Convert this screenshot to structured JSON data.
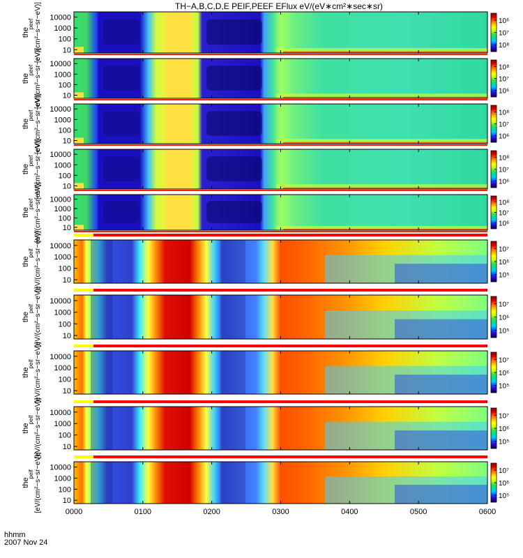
{
  "title": "TH−A,B,C,D,E PEIF,PEEF EFlux eV/(eV∗cm²∗sec∗sr)",
  "footer": {
    "time_unit": "hhmm",
    "date": "2007 Nov 24",
    "left_overlap": "[eV/(cm²−s"
  },
  "chart_data": [
    {
      "type": "heatmap",
      "panel": "peef_a",
      "ylabel_main": "the",
      "ylabel_sub": "peef",
      "ylabel_units": "[eV/(cm²−s−sr−eV)]",
      "y_ticks": [
        "10000",
        "1000",
        "100",
        "10"
      ],
      "x_ticks": [
        "0000",
        "0100",
        "0200",
        "0300",
        "0400",
        "0500",
        "0600"
      ],
      "colorbar_ticks": [
        "10⁶",
        "10⁷",
        "10⁸"
      ],
      "colorbar": "rainbow",
      "yscale": "log",
      "xlim": [
        "0000",
        "0600"
      ],
      "ylim": [
        5,
        30000
      ],
      "flag_bar": false
    },
    {
      "type": "heatmap",
      "panel": "peef_b",
      "ylabel_main": "the",
      "ylabel_sub": "peef",
      "ylabel_units": "[eV/(cm²−s−sr−eV)]",
      "y_ticks": [
        "10000",
        "1000",
        "100",
        "10"
      ],
      "x_ticks": [
        "0000",
        "0100",
        "0200",
        "0300",
        "0400",
        "0500",
        "0600"
      ],
      "colorbar_ticks": [
        "10⁸",
        "10⁷",
        "10⁶"
      ],
      "colorbar": "rainbow",
      "yscale": "log",
      "xlim": [
        "0000",
        "0600"
      ],
      "ylim": [
        5,
        30000
      ],
      "flag_bar": false
    },
    {
      "type": "heatmap",
      "panel": "peef_c",
      "ylabel_main": "the",
      "ylabel_sub": "peef",
      "ylabel_units": "[eV/(cm²−s−sr−eV)]",
      "y_ticks": [
        "10000",
        "1000",
        "100",
        "10"
      ],
      "x_ticks": [
        "0000",
        "0100",
        "0200",
        "0300",
        "0400",
        "0500",
        "0600"
      ],
      "colorbar_ticks": [
        "10⁸",
        "10⁷",
        "10⁶"
      ],
      "colorbar": "rainbow",
      "yscale": "log",
      "xlim": [
        "0000",
        "0600"
      ],
      "ylim": [
        5,
        30000
      ],
      "flag_bar": false
    },
    {
      "type": "heatmap",
      "panel": "peef_d",
      "ylabel_main": "the",
      "ylabel_sub": "peef",
      "ylabel_units": "[eV/(cm²−s−sr−eV)]",
      "y_ticks": [
        "10000",
        "1000",
        "100",
        "10"
      ],
      "x_ticks": [
        "0000",
        "0100",
        "0200",
        "0300",
        "0400",
        "0500",
        "0600"
      ],
      "colorbar_ticks": [
        "10⁸",
        "10⁷",
        "10⁶"
      ],
      "colorbar": "rainbow",
      "yscale": "log",
      "xlim": [
        "0000",
        "0600"
      ],
      "ylim": [
        5,
        30000
      ],
      "flag_bar": false
    },
    {
      "type": "heatmap",
      "panel": "peef_e",
      "ylabel_main": "the",
      "ylabel_sub": "peef",
      "ylabel_units": "[eV/(cm²−s−sr−eV)]",
      "y_ticks": [
        "10000",
        "1000",
        "100",
        "10"
      ],
      "x_ticks": [
        "0000",
        "0100",
        "0200",
        "0300",
        "0400",
        "0500",
        "0600"
      ],
      "colorbar_ticks": [
        "10⁸",
        "10⁷",
        "10⁶"
      ],
      "colorbar": "rainbow",
      "yscale": "log",
      "xlim": [
        "0000",
        "0600"
      ],
      "ylim": [
        5,
        30000
      ],
      "flag_bar": false
    },
    {
      "type": "heatmap",
      "panel": "peif_a",
      "ylabel_main": "the",
      "ylabel_sub": "peif",
      "ylabel_units": "[eV/(cm²−s−sr−eV)]",
      "y_ticks": [
        "10000",
        "1000",
        "100",
        "10"
      ],
      "x_ticks": [
        "0000",
        "0100",
        "0200",
        "0300",
        "0400",
        "0500",
        "0600"
      ],
      "colorbar_ticks": [
        "10⁷",
        "10⁶",
        "10⁵"
      ],
      "colorbar": "rainbow",
      "yscale": "log",
      "xlim": [
        "0000",
        "0600"
      ],
      "ylim": [
        5,
        30000
      ],
      "flag_bar": true
    },
    {
      "type": "heatmap",
      "panel": "peif_b",
      "ylabel_main": "the",
      "ylabel_sub": "peif",
      "ylabel_units": "[eV/(cm²−s−sr−eV)]",
      "y_ticks": [
        "10000",
        "1000",
        "100",
        "10"
      ],
      "x_ticks": [
        "0000",
        "0100",
        "0200",
        "0300",
        "0400",
        "0500",
        "0600"
      ],
      "colorbar_ticks": [
        "10⁷",
        "10⁶",
        "10⁵"
      ],
      "colorbar": "rainbow",
      "yscale": "log",
      "xlim": [
        "0000",
        "0600"
      ],
      "ylim": [
        5,
        30000
      ],
      "flag_bar": true
    },
    {
      "type": "heatmap",
      "panel": "peif_c",
      "ylabel_main": "the",
      "ylabel_sub": "peif",
      "ylabel_units": "[eV/(cm²−s−sr−eV)]",
      "y_ticks": [
        "10000",
        "1000",
        "100",
        "10"
      ],
      "x_ticks": [
        "0000",
        "0100",
        "0200",
        "0300",
        "0400",
        "0500",
        "0600"
      ],
      "colorbar_ticks": [
        "10⁷",
        "10⁶",
        "10⁵"
      ],
      "colorbar": "rainbow",
      "yscale": "log",
      "xlim": [
        "0000",
        "0600"
      ],
      "ylim": [
        5,
        30000
      ],
      "flag_bar": true
    },
    {
      "type": "heatmap",
      "panel": "peif_d",
      "ylabel_main": "the",
      "ylabel_sub": "peif",
      "ylabel_units": "[eV/(cm²−s−sr−eV)]",
      "y_ticks": [
        "10000",
        "1000",
        "100",
        "10"
      ],
      "x_ticks": [
        "0000",
        "0100",
        "0200",
        "0300",
        "0400",
        "0500",
        "0600"
      ],
      "colorbar_ticks": [
        "10⁷",
        "10⁶",
        "10⁵"
      ],
      "colorbar": "rainbow",
      "yscale": "log",
      "xlim": [
        "0000",
        "0600"
      ],
      "ylim": [
        5,
        30000
      ],
      "flag_bar": true
    },
    {
      "type": "heatmap",
      "panel": "peif_e",
      "ylabel_main": "the",
      "ylabel_sub": "peif",
      "ylabel_units": "[eV/(cm²−s−sr−eV)]",
      "y_ticks": [
        "10000",
        "1000",
        "100",
        "10"
      ],
      "x_ticks": [
        "0000",
        "0100",
        "0200",
        "0300",
        "0400",
        "0500",
        "0600"
      ],
      "colorbar_ticks": [
        "10⁷",
        "10⁶",
        "10⁵"
      ],
      "colorbar": "rainbow",
      "yscale": "log",
      "xlim": [
        "0000",
        "0600"
      ],
      "ylim": [
        5,
        30000
      ],
      "flag_bar": true
    }
  ],
  "flag_colors": {
    "first_segment": "#ffff00",
    "rest": "#ff0000"
  },
  "colorbar_colors": [
    "#1a0040",
    "#2a00c8",
    "#0050ff",
    "#00c8ff",
    "#00e090",
    "#40e040",
    "#c8ff00",
    "#ffff00",
    "#ffb000",
    "#ff5000",
    "#d00000",
    "#a00000"
  ]
}
